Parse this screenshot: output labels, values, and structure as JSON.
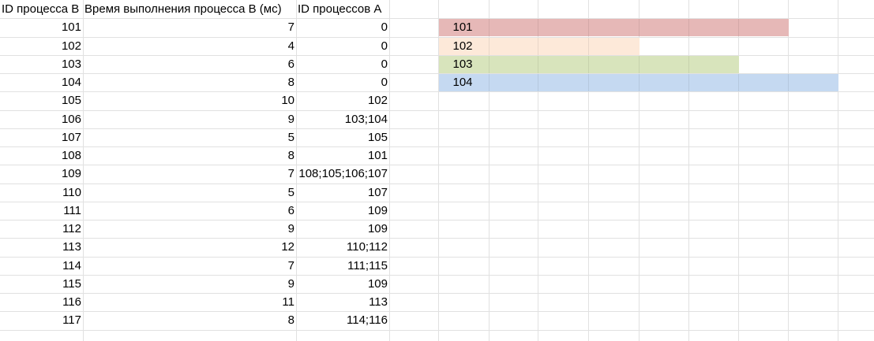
{
  "headers": {
    "col_b": "ID процесса B",
    "col_time": "Время выполнения процесса B (мс)",
    "col_a": "ID процессов A"
  },
  "rows": [
    {
      "id": "101",
      "time": "7",
      "deps": "0"
    },
    {
      "id": "102",
      "time": "4",
      "deps": "0"
    },
    {
      "id": "103",
      "time": "6",
      "deps": "0"
    },
    {
      "id": "104",
      "time": "8",
      "deps": "0"
    },
    {
      "id": "105",
      "time": "10",
      "deps": "102"
    },
    {
      "id": "106",
      "time": "9",
      "deps": "103;104"
    },
    {
      "id": "107",
      "time": "5",
      "deps": "105"
    },
    {
      "id": "108",
      "time": "8",
      "deps": "101"
    },
    {
      "id": "109",
      "time": "7",
      "deps": "108;105;106;107"
    },
    {
      "id": "110",
      "time": "5",
      "deps": "107"
    },
    {
      "id": "111",
      "time": "6",
      "deps": "109"
    },
    {
      "id": "112",
      "time": "9",
      "deps": "109"
    },
    {
      "id": "113",
      "time": "12",
      "deps": "110;112"
    },
    {
      "id": "114",
      "time": "7",
      "deps": "111;115"
    },
    {
      "id": "115",
      "time": "9",
      "deps": "109"
    },
    {
      "id": "116",
      "time": "11",
      "deps": "113"
    },
    {
      "id": "117",
      "time": "8",
      "deps": "114;116"
    }
  ],
  "gantt": [
    {
      "label": "101",
      "span_cells": 7,
      "color": "#e6b8b7"
    },
    {
      "label": "102",
      "span_cells": 4,
      "color": "#fde9d9"
    },
    {
      "label": "103",
      "span_cells": 6,
      "color": "#d8e4bc"
    },
    {
      "label": "104",
      "span_cells": 8,
      "color": "#c5d9f1"
    }
  ]
}
